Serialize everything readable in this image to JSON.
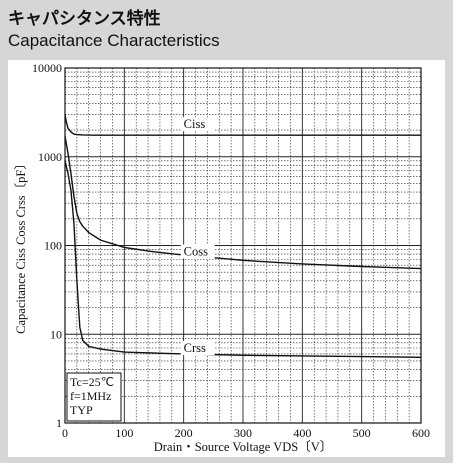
{
  "header": {
    "title_jp": "キャパシタンス特性",
    "title_en": "Capacitance Characteristics"
  },
  "chart_data": {
    "type": "line",
    "xlabel": "Drain・Source Voltage  VDS〔V〕",
    "ylabel": "Capacitance Ciss Coss Crss〔pF〕",
    "xlim": [
      0,
      600
    ],
    "ylim": [
      1,
      10000
    ],
    "yscale": "log",
    "x_ticks": [
      "0",
      "100",
      "200",
      "300",
      "400",
      "500",
      "600"
    ],
    "y_ticks": [
      "1",
      "10",
      "100",
      "1000",
      "10000"
    ],
    "grid": true,
    "conditions": [
      "Tc=25℃",
      "f=1MHz",
      "TYP"
    ],
    "series": [
      {
        "name": "Ciss",
        "x": [
          0,
          2,
          5,
          10,
          15,
          20,
          30,
          50,
          100,
          200,
          300,
          400,
          500,
          600
        ],
        "y": [
          3000,
          2500,
          2100,
          1900,
          1800,
          1780,
          1760,
          1750,
          1750,
          1750,
          1750,
          1750,
          1750,
          1750
        ]
      },
      {
        "name": "Coss",
        "x": [
          0,
          5,
          10,
          15,
          20,
          25,
          30,
          40,
          60,
          100,
          150,
          200,
          300,
          400,
          500,
          600
        ],
        "y": [
          1700,
          1100,
          650,
          360,
          230,
          185,
          165,
          140,
          115,
          95,
          85,
          78,
          68,
          62,
          58,
          55
        ]
      },
      {
        "name": "Crss",
        "x": [
          0,
          5,
          10,
          15,
          20,
          25,
          30,
          40,
          60,
          100,
          200,
          300,
          400,
          500,
          600
        ],
        "y": [
          900,
          650,
          420,
          180,
          40,
          12,
          8.5,
          7.3,
          6.8,
          6.3,
          6.0,
          5.8,
          5.7,
          5.6,
          5.5
        ]
      }
    ]
  }
}
